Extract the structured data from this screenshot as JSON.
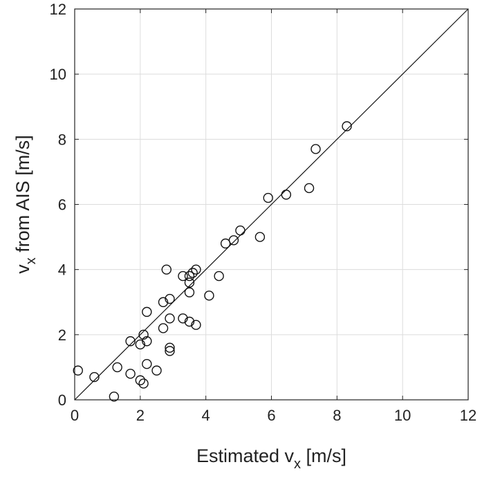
{
  "chart_data": {
    "type": "scatter",
    "title": "",
    "xlabel": "Estimated v_x [m/s]",
    "ylabel": "v_x from AIS [m/s]",
    "xlabel_parts": {
      "pre": "Estimated v",
      "sub": "x",
      "post": " [m/s]"
    },
    "ylabel_parts": {
      "pre": "v",
      "sub": "x",
      "post": " from AIS [m/s]"
    },
    "xlim": [
      0,
      12
    ],
    "ylim": [
      0,
      12
    ],
    "xticks": [
      0,
      2,
      4,
      6,
      8,
      10,
      12
    ],
    "yticks": [
      0,
      2,
      4,
      6,
      8,
      10,
      12
    ],
    "xtick_labels": [
      "0",
      "2",
      "4",
      "6",
      "8",
      "10",
      "12"
    ],
    "ytick_labels": [
      "0",
      "2",
      "4",
      "6",
      "8",
      "10",
      "12"
    ],
    "grid": true,
    "marker": "open-circle",
    "reference_line": {
      "from": [
        0,
        0
      ],
      "to": [
        12,
        12
      ]
    },
    "colors": {
      "marker": "#111111",
      "grid": "#dcdcdc",
      "axis": "#222222"
    },
    "points": [
      [
        0.1,
        0.9
      ],
      [
        0.6,
        0.7
      ],
      [
        1.2,
        0.1
      ],
      [
        1.3,
        1.0
      ],
      [
        1.7,
        0.8
      ],
      [
        1.7,
        1.8
      ],
      [
        2.0,
        1.7
      ],
      [
        2.0,
        0.6
      ],
      [
        2.1,
        0.5
      ],
      [
        2.1,
        2.0
      ],
      [
        2.2,
        1.8
      ],
      [
        2.2,
        1.1
      ],
      [
        2.2,
        2.7
      ],
      [
        2.5,
        0.9
      ],
      [
        2.7,
        3.0
      ],
      [
        2.7,
        2.2
      ],
      [
        2.8,
        4.0
      ],
      [
        2.9,
        3.1
      ],
      [
        2.9,
        2.5
      ],
      [
        2.9,
        1.6
      ],
      [
        2.9,
        1.5
      ],
      [
        3.3,
        3.8
      ],
      [
        3.3,
        2.5
      ],
      [
        3.5,
        3.8
      ],
      [
        3.5,
        3.6
      ],
      [
        3.5,
        3.3
      ],
      [
        3.5,
        2.4
      ],
      [
        3.6,
        3.9
      ],
      [
        3.7,
        4.0
      ],
      [
        3.7,
        2.3
      ],
      [
        4.1,
        3.2
      ],
      [
        4.4,
        3.8
      ],
      [
        4.6,
        4.8
      ],
      [
        4.85,
        4.9
      ],
      [
        5.05,
        5.2
      ],
      [
        5.65,
        5.0
      ],
      [
        5.9,
        6.2
      ],
      [
        6.45,
        6.3
      ],
      [
        7.15,
        6.5
      ],
      [
        7.35,
        7.7
      ],
      [
        8.3,
        8.4
      ]
    ]
  }
}
